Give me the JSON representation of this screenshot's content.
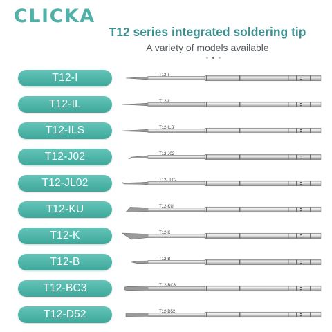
{
  "brand": {
    "logo_text": "CLICKA",
    "color": "#4fb1a7"
  },
  "header": {
    "title": "T12 series integrated soldering tip",
    "subtitle": "A variety of models available"
  },
  "carousel": {
    "dot_count": 3,
    "active_index": 1
  },
  "colors": {
    "pill": "#4fb1a7",
    "title": "#3e8f90",
    "subtitle": "#555a5e"
  },
  "tips": [
    {
      "model": "T12-I",
      "tip_shape": "conical-fine"
    },
    {
      "model": "T12-IL",
      "tip_shape": "conical-long"
    },
    {
      "model": "T12-ILS",
      "tip_shape": "conical-long-sharp"
    },
    {
      "model": "T12-J02",
      "tip_shape": "bent"
    },
    {
      "model": "T12-JL02",
      "tip_shape": "bent-long"
    },
    {
      "model": "T12-KU",
      "tip_shape": "knife-wide"
    },
    {
      "model": "T12-K",
      "tip_shape": "knife"
    },
    {
      "model": "T12-B",
      "tip_shape": "round"
    },
    {
      "model": "T12-BC3",
      "tip_shape": "bevel"
    },
    {
      "model": "T12-D52",
      "tip_shape": "chisel"
    }
  ]
}
